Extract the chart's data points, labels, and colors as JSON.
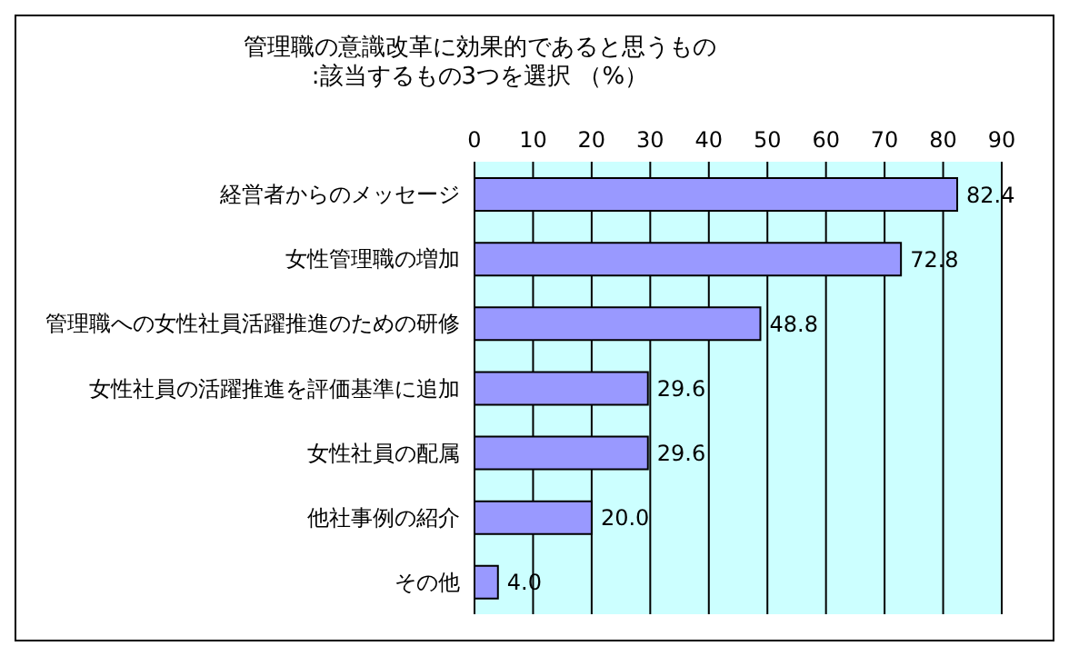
{
  "chart_data": {
    "type": "bar",
    "orientation": "horizontal",
    "title": "管理職の意識改革に効果的であると思うもの",
    "subtitle": ":該当するもの3つを選択 （%）",
    "categories": [
      "経営者からのメッセージ",
      "女性管理職の増加",
      "管理職への女性社員活躍推進のための研修",
      "女性社員の活躍推進を評価基準に追加",
      "女性社員の配属",
      "他社事例の紹介",
      "その他"
    ],
    "values": [
      82.4,
      72.8,
      48.8,
      29.6,
      29.6,
      20.0,
      4.0
    ],
    "value_labels": [
      "82.4",
      "72.8",
      "48.8",
      "29.6",
      "29.6",
      "20.0",
      "4.0"
    ],
    "color": "#9999ff",
    "xlim": [
      0,
      90
    ],
    "xticks": [
      0,
      10,
      20,
      30,
      40,
      50,
      60,
      70,
      80,
      90
    ],
    "grid": "x",
    "legend": false
  }
}
